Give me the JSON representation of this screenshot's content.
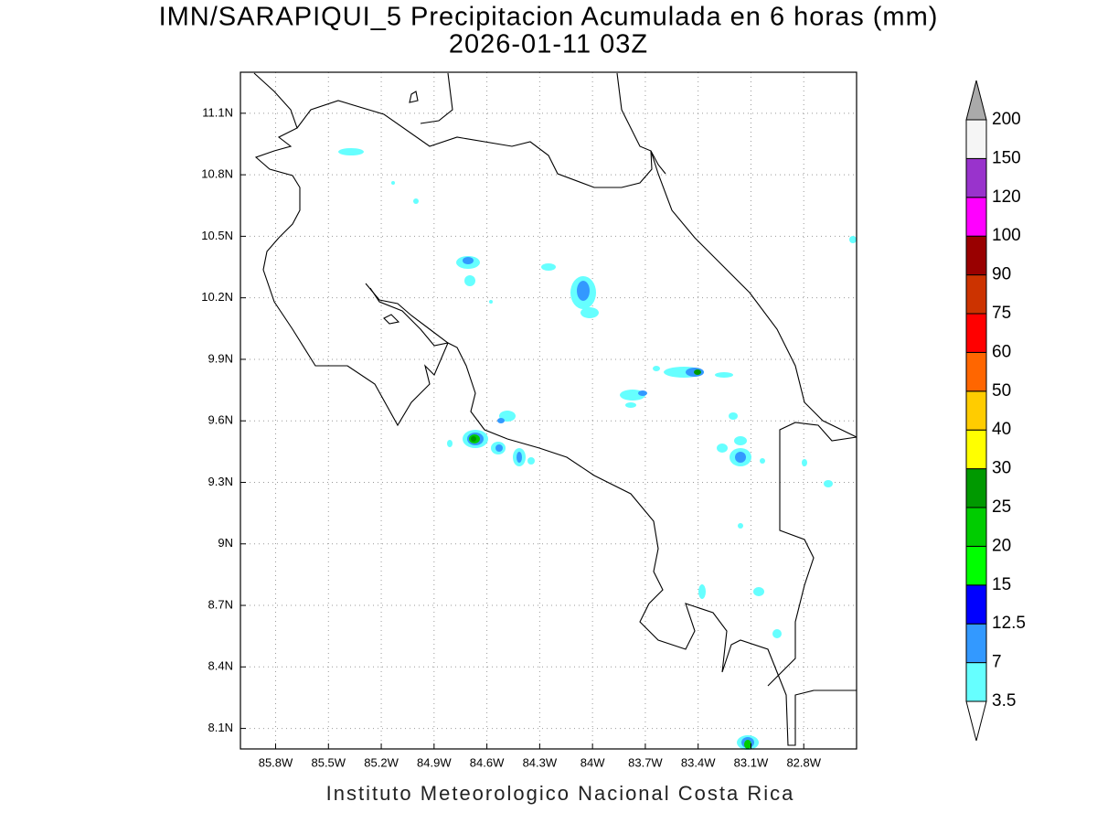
{
  "header": {
    "title": "IMN/SARAPIQUI_5 Precipitacion Acumulada en 6 horas (mm)",
    "subtitle": "2026-01-11 03Z"
  },
  "map": {
    "xlim": [
      -86.0,
      -82.5
    ],
    "ylim": [
      8.0,
      11.3
    ],
    "xticks": [
      {
        "value": -85.8,
        "label": "85.8W"
      },
      {
        "value": -85.5,
        "label": "85.5W"
      },
      {
        "value": -85.2,
        "label": "85.2W"
      },
      {
        "value": -84.9,
        "label": "84.9W"
      },
      {
        "value": -84.6,
        "label": "84.6W"
      },
      {
        "value": -84.3,
        "label": "84.3W"
      },
      {
        "value": -84.0,
        "label": "84W"
      },
      {
        "value": -83.7,
        "label": "83.7W"
      },
      {
        "value": -83.4,
        "label": "83.4W"
      },
      {
        "value": -83.1,
        "label": "83.1W"
      },
      {
        "value": -82.8,
        "label": "82.8W"
      }
    ],
    "yticks": [
      {
        "value": 8.1,
        "label": "8.1N"
      },
      {
        "value": 8.4,
        "label": "8.4N"
      },
      {
        "value": 8.7,
        "label": "8.7N"
      },
      {
        "value": 9.0,
        "label": "9N"
      },
      {
        "value": 9.3,
        "label": "9.3N"
      },
      {
        "value": 9.6,
        "label": "9.6N"
      },
      {
        "value": 9.9,
        "label": "9.9N"
      },
      {
        "value": 10.2,
        "label": "10.2N"
      },
      {
        "value": 10.5,
        "label": "10.5N"
      },
      {
        "value": 10.8,
        "label": "10.8N"
      },
      {
        "value": 11.1,
        "label": "11.1N"
      }
    ],
    "grid": true
  },
  "colorbar": {
    "levels": [
      3.5,
      7,
      12.5,
      15,
      20,
      25,
      30,
      40,
      50,
      60,
      75,
      90,
      100,
      120,
      150,
      200
    ],
    "colors": [
      "#66ffff",
      "#3399ff",
      "#0000ff",
      "#00ff00",
      "#00cc00",
      "#009900",
      "#ffff00",
      "#ffcc00",
      "#ff6600",
      "#ff0000",
      "#cc3300",
      "#990000",
      "#ff00ff",
      "#9933cc",
      "#f5f5f5"
    ],
    "under_color": "#ffffff",
    "over_color": "#aaaaaa"
  },
  "footer": "Instituto Meteorologico Nacional Costa Rica"
}
